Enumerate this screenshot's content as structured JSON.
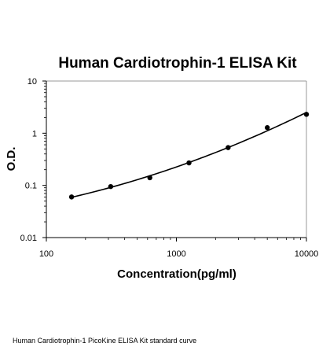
{
  "chart_data": {
    "type": "scatter",
    "title": "Human Cardiotrophin-1 ELISA Kit",
    "xlabel": "Concentration(pg/ml)",
    "ylabel": "O.D.",
    "xscale": "log",
    "yscale": "log",
    "xlim": [
      100,
      10000
    ],
    "ylim": [
      0.01,
      10
    ],
    "xticks": [
      100,
      1000,
      10000
    ],
    "xtick_labels": [
      "100",
      "1000",
      "10000"
    ],
    "yticks": [
      0.01,
      0.1,
      1,
      10
    ],
    "ytick_labels": [
      "0.01",
      "0.1",
      "1",
      "10"
    ],
    "grid": false,
    "series": [
      {
        "points": [
          {
            "x": 156.25,
            "y": 0.06
          },
          {
            "x": 312.5,
            "y": 0.095
          },
          {
            "x": 625,
            "y": 0.14
          },
          {
            "x": 1250,
            "y": 0.27
          },
          {
            "x": 2500,
            "y": 0.53
          },
          {
            "x": 5000,
            "y": 1.28
          },
          {
            "x": 10000,
            "y": 2.3
          }
        ],
        "fit_curve": true,
        "color": "#000000"
      }
    ]
  },
  "caption": "Human Cardiotrophin-1 PicoKine ELISA Kit standard curve"
}
